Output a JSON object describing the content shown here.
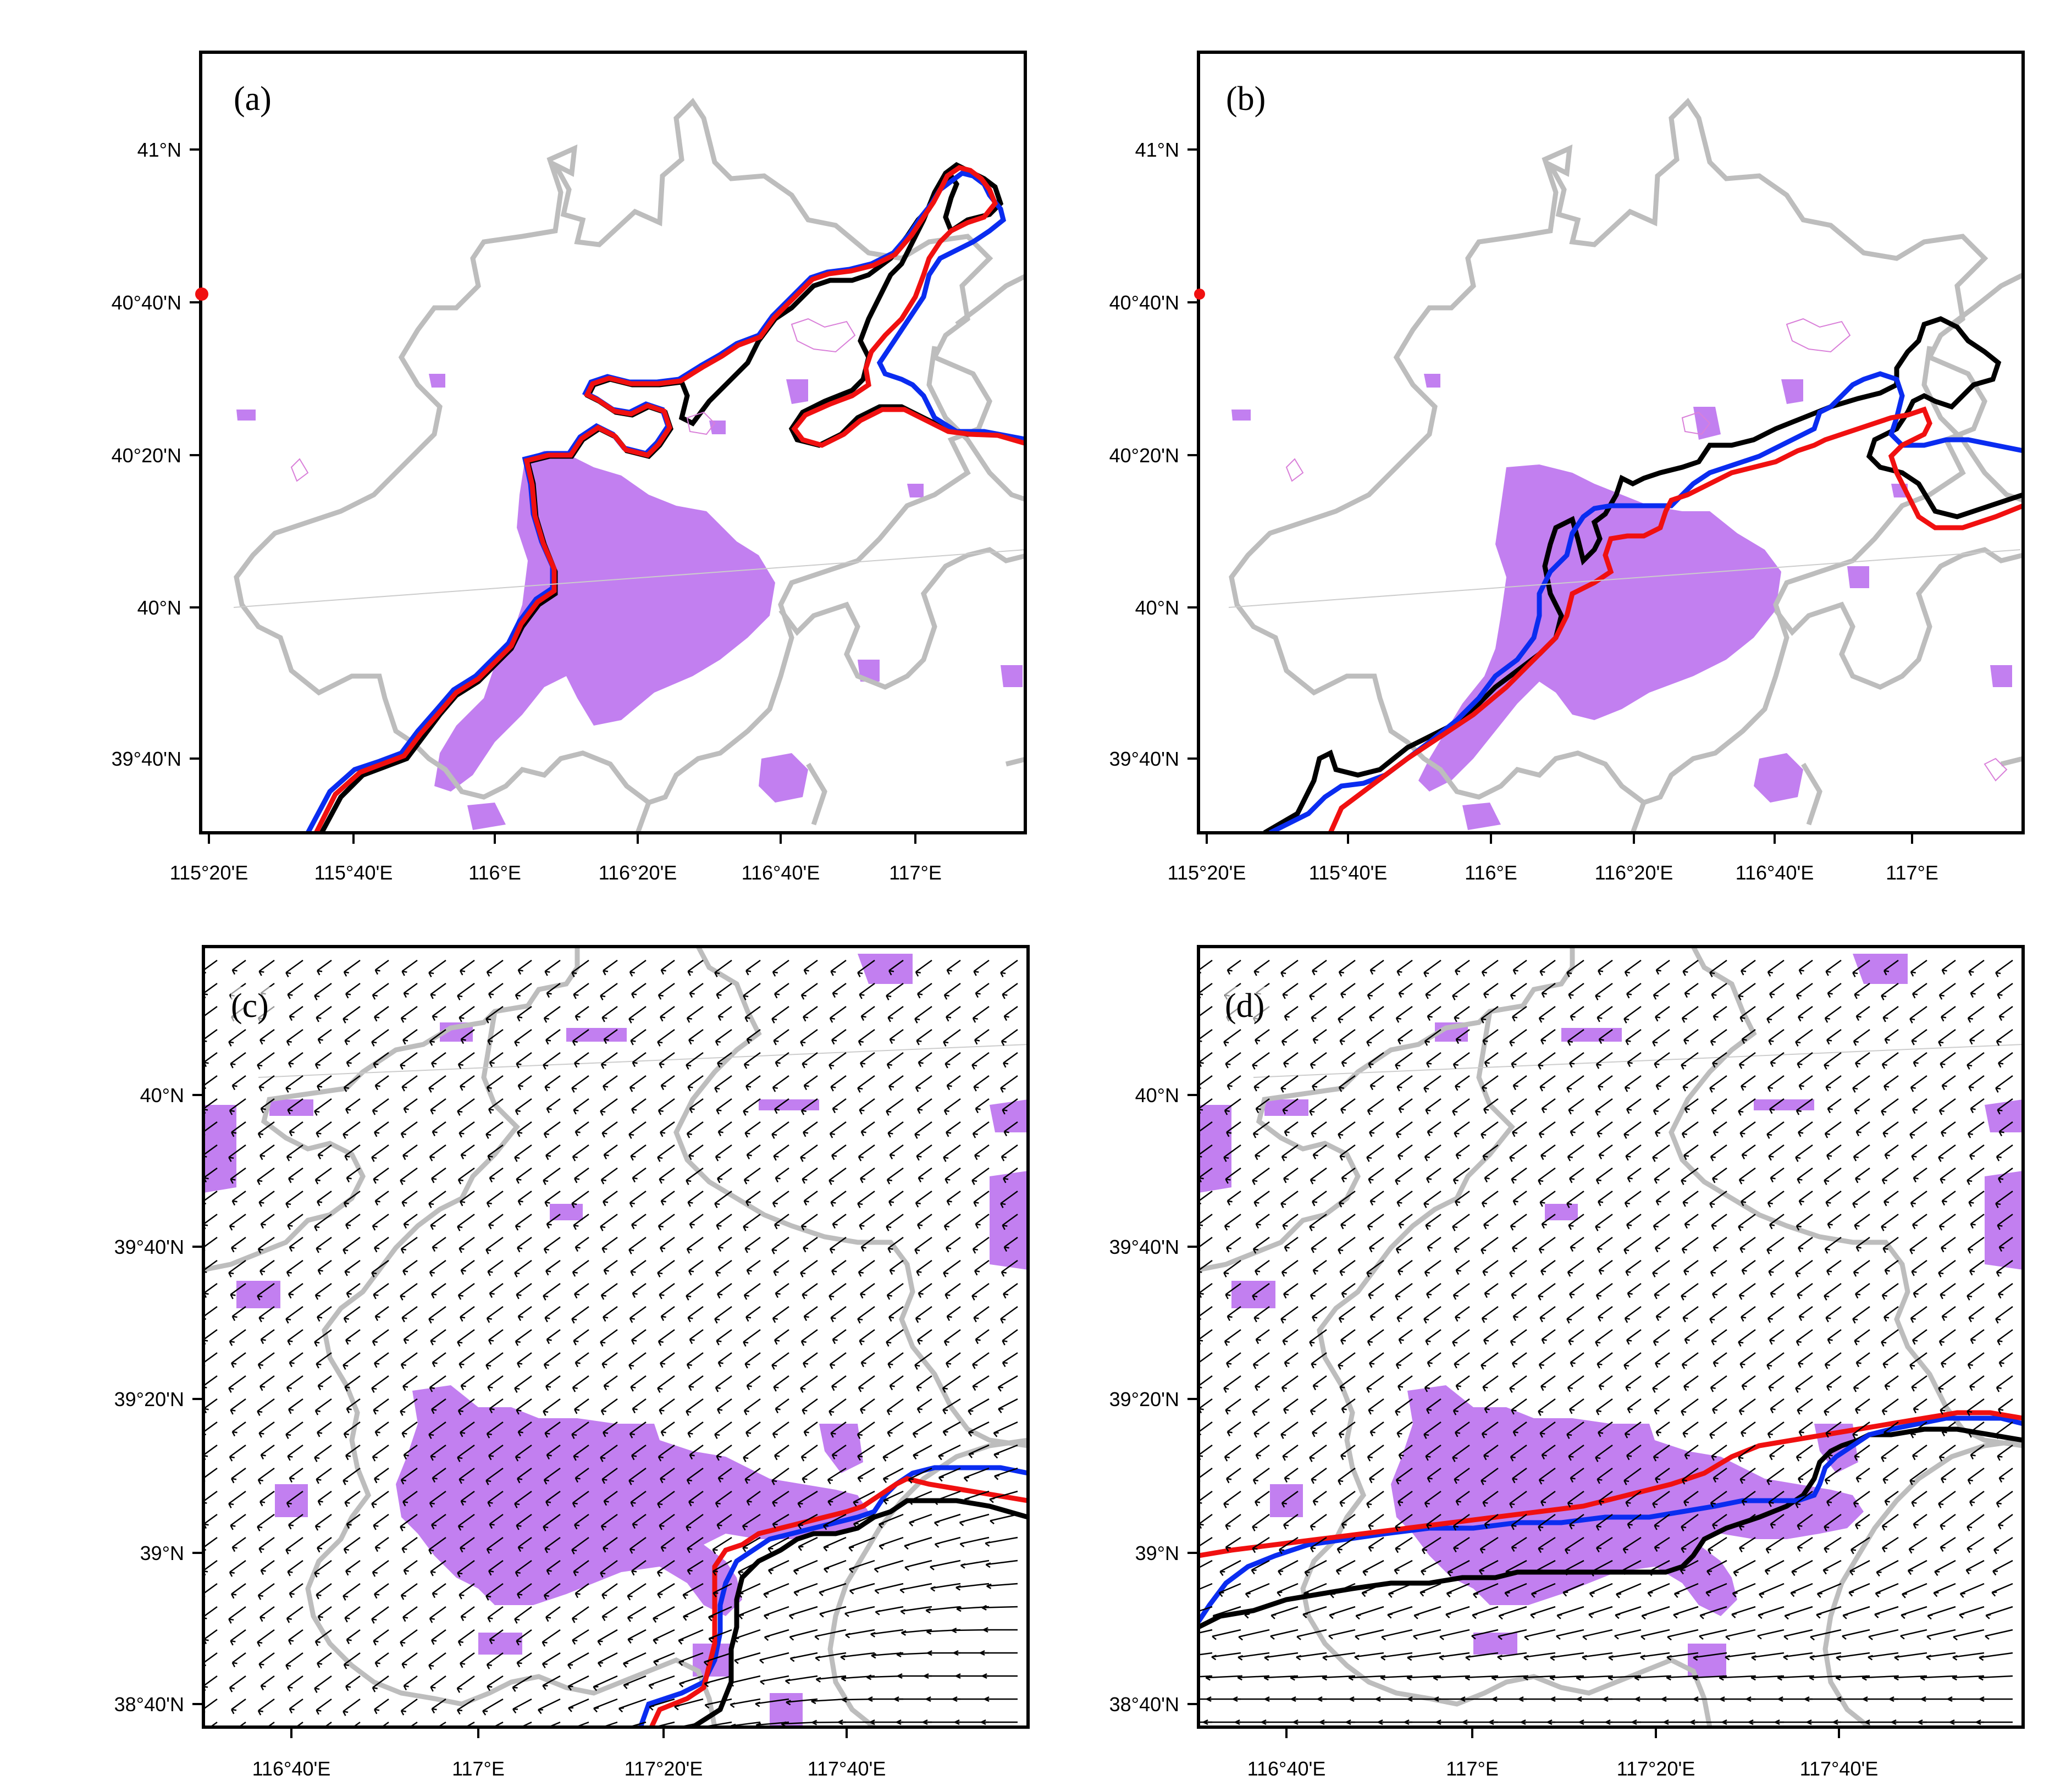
{
  "figure": {
    "panels": [
      {
        "id": "a",
        "label": "(a)",
        "x_ticks": [
          "115°20'E",
          "115°40'E",
          "116°E",
          "116°20'E",
          "116°40'E",
          "117°E"
        ],
        "y_ticks": [
          "41°N",
          "40°40'N",
          "40°20'N",
          "40°N",
          "39°40'N"
        ],
        "has_wind_vectors": false
      },
      {
        "id": "b",
        "label": "(b)",
        "x_ticks": [
          "115°20'E",
          "115°40'E",
          "116°E",
          "116°20'E",
          "116°40'E",
          "117°E"
        ],
        "y_ticks": [
          "41°N",
          "40°40'N",
          "40°20'N",
          "40°N",
          "39°40'N"
        ],
        "has_wind_vectors": false
      },
      {
        "id": "c",
        "label": "(c)",
        "x_ticks": [
          "116°40'E",
          "117°E",
          "117°20'E",
          "117°40'E"
        ],
        "y_ticks": [
          "40°N",
          "39°40'N",
          "39°20'N",
          "39°N",
          "38°40'N"
        ],
        "has_wind_vectors": true
      },
      {
        "id": "d",
        "label": "(d)",
        "x_ticks": [
          "116°40'E",
          "117°E",
          "117°20'E",
          "117°40'E"
        ],
        "y_ticks": [
          "40°N",
          "39°40'N",
          "39°20'N",
          "39°N",
          "38°40'N"
        ],
        "has_wind_vectors": true
      }
    ],
    "colors": {
      "urban_fill": "#c27ff0",
      "boundary": "#bdbdbd",
      "line_black": "#000000",
      "line_blue": "#0a2cf0",
      "line_red": "#f01010",
      "vector": "#000000"
    }
  }
}
